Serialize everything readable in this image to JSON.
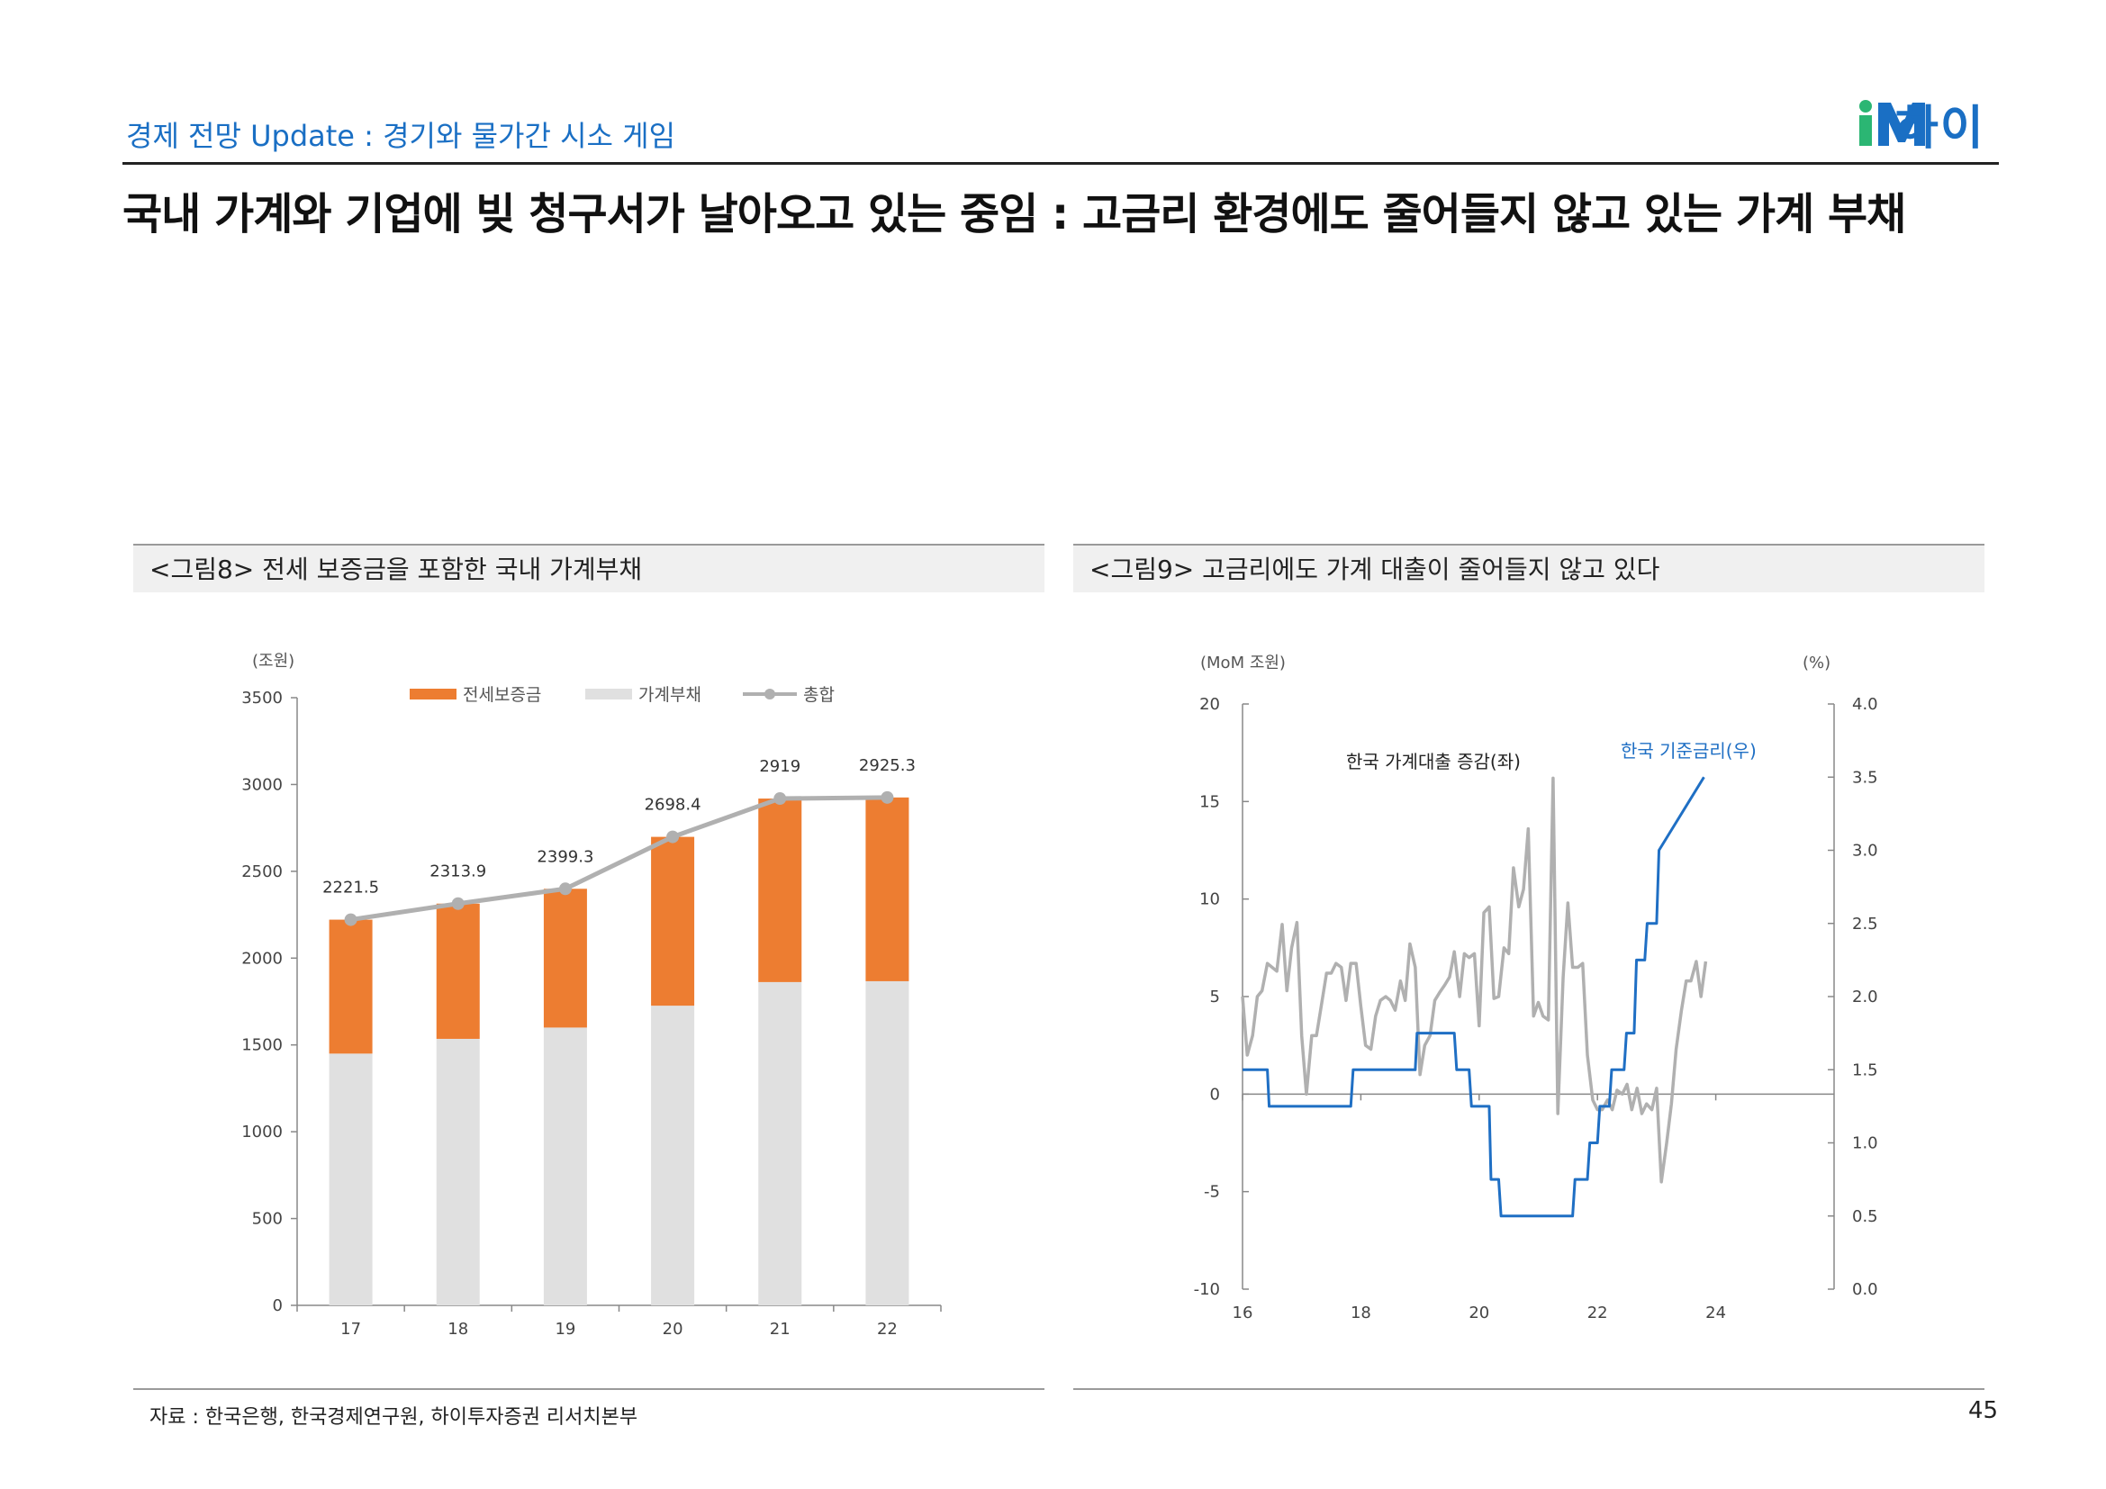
{
  "header": {
    "subtitle": "경제 전망 Update : 경기와 물가간 시소 게임",
    "logo_text": "하이",
    "title": "국내 가계와 기업에 빚 청구서가 날아오고 있는 중임 : 고금리 환경에도 줄어들지 않고 있는 가계 부채"
  },
  "colors": {
    "brand": "#1a6fc4",
    "orange": "#ed7d31",
    "lightgray": "#e0e0e0",
    "gray": "#b0b0b0",
    "blue": "#1f6fc4"
  },
  "chart_data": [
    {
      "type": "bar",
      "caption": "<그림8> 전세 보증금을 포함한 국내 가계부채",
      "ylabel": "(조원)",
      "ylim": [
        0,
        3500
      ],
      "yticks": [
        "0",
        "500",
        "1000",
        "1500",
        "2000",
        "2500",
        "3000",
        "3500"
      ],
      "categories": [
        "17",
        "18",
        "19",
        "20",
        "21",
        "22"
      ],
      "legend": [
        "전세보증금",
        "가계부채",
        "총합"
      ],
      "series": [
        {
          "name": "가계부채",
          "values": [
            1450,
            1535,
            1600,
            1726,
            1862,
            1867
          ]
        },
        {
          "name": "전세보증금",
          "values": [
            771.5,
            778.9,
            799.3,
            972.4,
            1057,
            1058.3
          ]
        },
        {
          "name": "총합",
          "values": [
            2221.5,
            2313.9,
            2399.3,
            2698.4,
            2919,
            2925.3
          ]
        }
      ],
      "total_labels": [
        "2221.5",
        "2313.9",
        "2399.3",
        "2698.4",
        "2919",
        "2925.3"
      ]
    },
    {
      "type": "line",
      "caption": "<그림9>  고금리에도 가계 대출이 줄어들지 않고 있다",
      "ylabel_left": "(MoM 조원)",
      "ylabel_right": "(%)",
      "ylim_left": [
        -10,
        20
      ],
      "ylim_right": [
        0,
        4
      ],
      "yticks_left": [
        "-10",
        "-5",
        "0",
        "5",
        "10",
        "15",
        "20"
      ],
      "yticks_right": [
        "0.0",
        "0.5",
        "1.0",
        "1.5",
        "2.0",
        "2.5",
        "3.0",
        "3.5",
        "4.0"
      ],
      "xticks": [
        "16",
        "18",
        "20",
        "22",
        "24"
      ],
      "xlim": [
        16,
        26
      ],
      "series": [
        {
          "name": "한국 가계대출 증감(좌)",
          "axis": "left",
          "x": [
            16.0,
            16.08,
            16.17,
            16.25,
            16.33,
            16.42,
            16.5,
            16.58,
            16.67,
            16.75,
            16.83,
            16.92,
            17.0,
            17.08,
            17.17,
            17.25,
            17.33,
            17.42,
            17.5,
            17.58,
            17.67,
            17.75,
            17.83,
            17.92,
            18.0,
            18.08,
            18.17,
            18.25,
            18.33,
            18.42,
            18.5,
            18.58,
            18.67,
            18.75,
            18.83,
            18.92,
            19.0,
            19.08,
            19.17,
            19.25,
            19.33,
            19.42,
            19.5,
            19.58,
            19.67,
            19.75,
            19.83,
            19.92,
            20.0,
            20.08,
            20.17,
            20.25,
            20.33,
            20.42,
            20.5,
            20.58,
            20.67,
            20.75,
            20.83,
            20.92,
            21.0,
            21.08,
            21.17,
            21.25,
            21.33,
            21.42,
            21.5,
            21.58,
            21.67,
            21.75,
            21.83,
            21.92,
            22.0,
            22.08,
            22.17,
            22.25,
            22.33,
            22.42,
            22.5,
            22.58,
            22.67,
            22.75,
            22.83,
            22.92,
            23.0,
            23.08,
            23.17,
            23.25,
            23.33,
            23.42,
            23.5,
            23.58,
            23.67,
            23.75,
            23.83
          ],
          "values": [
            5.0,
            2.0,
            3.0,
            5.0,
            5.3,
            6.7,
            6.5,
            6.3,
            8.7,
            5.3,
            7.5,
            8.8,
            3.0,
            0.0,
            3.0,
            3.0,
            4.5,
            6.2,
            6.2,
            6.7,
            6.5,
            4.8,
            6.7,
            6.7,
            4.5,
            2.5,
            2.3,
            4.0,
            4.8,
            5.0,
            4.8,
            4.3,
            5.8,
            4.8,
            7.7,
            6.5,
            1.0,
            2.5,
            3.0,
            4.8,
            5.2,
            5.6,
            6.0,
            7.3,
            5.0,
            7.2,
            7.0,
            7.2,
            3.5,
            9.3,
            9.6,
            4.9,
            5.0,
            7.5,
            7.2,
            11.6,
            9.6,
            10.5,
            13.6,
            4.0,
            4.7,
            4.0,
            3.8,
            16.2,
            -1.0,
            6.0,
            9.8,
            6.5,
            6.5,
            6.7,
            2.0,
            -0.3,
            -0.8,
            -0.8,
            -0.3,
            -0.8,
            0.2,
            0.0,
            0.5,
            -0.8,
            0.3,
            -1.0,
            -0.5,
            -0.8,
            0.3,
            -4.5,
            -2.5,
            -0.5,
            2.3,
            4.3,
            5.8,
            5.8,
            6.8,
            5.0,
            6.8
          ]
        },
        {
          "name": "한국 기준금리(우)",
          "axis": "right",
          "x": [
            16.0,
            16.42,
            16.45,
            17.83,
            17.87,
            18.92,
            18.95,
            19.58,
            19.62,
            19.83,
            19.87,
            20.17,
            20.2,
            20.33,
            20.37,
            21.58,
            21.62,
            21.83,
            21.87,
            22.0,
            22.04,
            22.2,
            22.24,
            22.45,
            22.49,
            22.62,
            22.66,
            22.8,
            22.84,
            23.0,
            23.04,
            23.8
          ],
          "values": [
            1.5,
            1.5,
            1.25,
            1.25,
            1.5,
            1.5,
            1.75,
            1.75,
            1.5,
            1.5,
            1.25,
            1.25,
            0.75,
            0.75,
            0.5,
            0.5,
            0.75,
            0.75,
            1.0,
            1.0,
            1.25,
            1.25,
            1.5,
            1.5,
            1.75,
            1.75,
            2.25,
            2.25,
            2.5,
            2.5,
            3.0,
            3.5
          ]
        }
      ],
      "annotations": [
        "한국 가계대출 증감(좌)",
        "한국 기준금리(우)"
      ]
    }
  ],
  "footer": {
    "source": "자료 : 한국은행, 한국경제연구원, 하이투자증권 리서치본부",
    "page": "45"
  }
}
